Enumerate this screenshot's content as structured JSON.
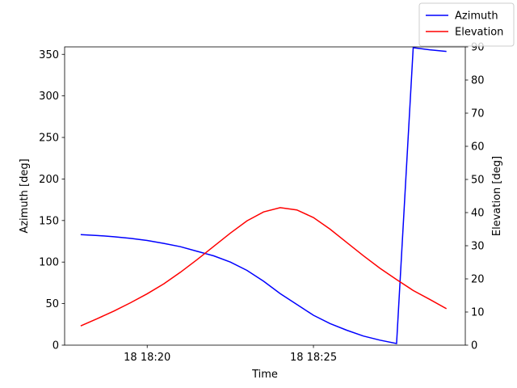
{
  "chart_data": {
    "type": "line",
    "x_label": "Time",
    "y_label": "Azimuth [deg]",
    "y2_label": "Elevation [deg]",
    "x": [
      "18 18:18:00",
      "18 18:18:30",
      "18 18:19:00",
      "18 18:19:30",
      "18 18:20:00",
      "18 18:20:30",
      "18 18:21:00",
      "18 18:21:30",
      "18 18:22:00",
      "18 18:22:30",
      "18 18:23:00",
      "18 18:23:30",
      "18 18:24:00",
      "18 18:24:30",
      "18 18:25:00",
      "18 18:25:30",
      "18 18:26:00",
      "18 18:26:30",
      "18 18:27:00",
      "18 18:27:30",
      "18 18:28:00",
      "18 18:28:30",
      "18 18:29:00"
    ],
    "series": [
      {
        "name": "Azimuth",
        "color": "#0000ff",
        "values": [
          133,
          132,
          130.5,
          128.5,
          126,
          122.5,
          118.5,
          113,
          107.5,
          100,
          90,
          77,
          62,
          49,
          36,
          26,
          18,
          11,
          6,
          2,
          358,
          355.5,
          353.5
        ]
      },
      {
        "name": "Elevation",
        "color": "#ff0000",
        "axis": "y2",
        "values": [
          5.8,
          8,
          10.3,
          12.8,
          15.5,
          18.5,
          22,
          25.8,
          29.8,
          33.8,
          37.5,
          40.2,
          41.5,
          40.8,
          38.5,
          35,
          31,
          27,
          23.2,
          19.8,
          16.5,
          13.8,
          11
        ]
      }
    ],
    "xlim": [
      "18 18:17:31",
      "18 18:29:34"
    ],
    "xticks": [
      {
        "value": "18 18:20:00",
        "label": "18 18:20"
      },
      {
        "value": "18 18:25:00",
        "label": "18 18:25"
      }
    ],
    "ylim": [
      0,
      359
    ],
    "yticks": [
      0,
      50,
      100,
      150,
      200,
      250,
      300,
      350
    ],
    "y2lim": [
      0,
      90
    ],
    "y2ticks": [
      0,
      10,
      20,
      30,
      40,
      50,
      60,
      70,
      80,
      90
    ],
    "legend": "upper right",
    "grid": false
  }
}
